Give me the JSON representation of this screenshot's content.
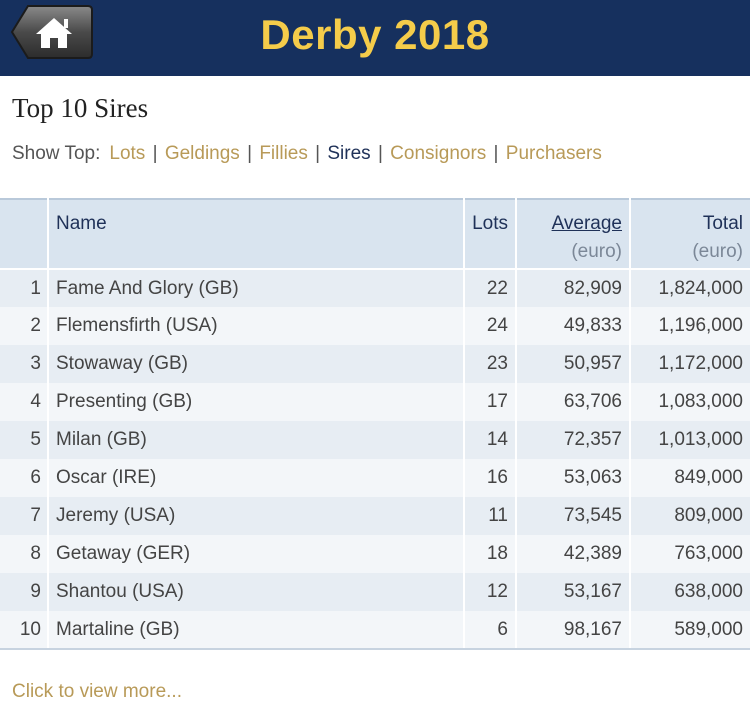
{
  "header": {
    "title": "Derby 2018",
    "home_icon": "home-icon"
  },
  "page_title": "Top 10 Sires",
  "show_top": {
    "label": "Show Top:",
    "links": [
      "Lots",
      "Geldings",
      "Fillies",
      "Sires",
      "Consignors",
      "Purchasers"
    ],
    "active": "Sires"
  },
  "table": {
    "headers": {
      "name": "Name",
      "lots": "Lots",
      "average": "Average",
      "average_unit": "(euro)",
      "total": "Total",
      "total_unit": "(euro)"
    },
    "rows": [
      {
        "rank": "1",
        "name": "Fame And Glory (GB)",
        "lots": "22",
        "average": "82,909",
        "total": "1,824,000"
      },
      {
        "rank": "2",
        "name": "Flemensfirth (USA)",
        "lots": "24",
        "average": "49,833",
        "total": "1,196,000"
      },
      {
        "rank": "3",
        "name": "Stowaway (GB)",
        "lots": "23",
        "average": "50,957",
        "total": "1,172,000"
      },
      {
        "rank": "4",
        "name": "Presenting (GB)",
        "lots": "17",
        "average": "63,706",
        "total": "1,083,000"
      },
      {
        "rank": "5",
        "name": "Milan (GB)",
        "lots": "14",
        "average": "72,357",
        "total": "1,013,000"
      },
      {
        "rank": "6",
        "name": "Oscar (IRE)",
        "lots": "16",
        "average": "53,063",
        "total": "849,000"
      },
      {
        "rank": "7",
        "name": "Jeremy (USA)",
        "lots": "11",
        "average": "73,545",
        "total": "809,000"
      },
      {
        "rank": "8",
        "name": "Getaway (GER)",
        "lots": "18",
        "average": "42,389",
        "total": "763,000"
      },
      {
        "rank": "9",
        "name": "Shantou (USA)",
        "lots": "12",
        "average": "53,167",
        "total": "638,000"
      },
      {
        "rank": "10",
        "name": "Martaline (GB)",
        "lots": "6",
        "average": "98,167",
        "total": "589,000"
      }
    ]
  },
  "more_link": "Click to view more...",
  "colors": {
    "header_bg": "#16305e",
    "title_gold": "#f5cc4a",
    "link_gold": "#b89a58",
    "active_navy": "#1f3158",
    "table_header_bg": "#d9e4ef"
  }
}
